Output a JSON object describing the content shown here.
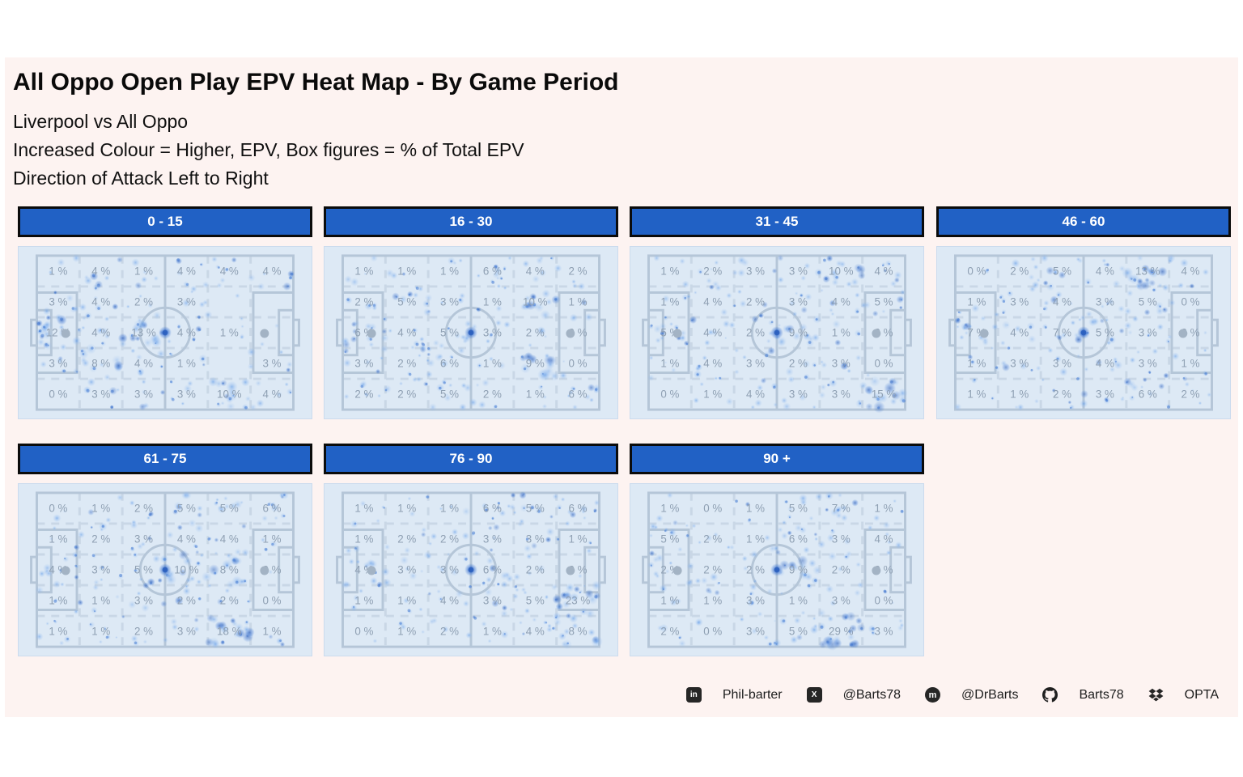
{
  "header": {
    "title": "All Oppo  Open Play EPV Heat Map - By Game Period",
    "subtitle1": "Liverpool vs All Oppo",
    "subtitle2": "Increased Colour = Higher, EPV, Box figures = % of Total EPV",
    "subtitle3": "Direction of Attack Left to Right"
  },
  "chart_data": {
    "type": "heatmap",
    "title": "All Oppo  Open Play EPV Heat Map - By Game Period",
    "subtitle": [
      "Liverpool vs All Oppo",
      "Increased Colour = Higher, EPV, Box figures = % of Total EPV",
      "Direction of Attack Left to Right"
    ],
    "unit": "% of Total EPV",
    "direction_of_attack": "Left to Right",
    "grid": {
      "rows": 5,
      "cols": 6
    },
    "panels": [
      {
        "period": "0 - 15",
        "values_pct": [
          [
            1,
            4,
            1,
            4,
            4,
            4
          ],
          [
            3,
            4,
            2,
            3,
            null,
            null
          ],
          [
            12,
            4,
            13,
            4,
            1,
            null
          ],
          [
            3,
            8,
            4,
            1,
            null,
            3
          ],
          [
            0,
            3,
            3,
            3,
            10,
            4
          ]
        ]
      },
      {
        "period": "16 - 30",
        "values_pct": [
          [
            1,
            1,
            1,
            6,
            4,
            2
          ],
          [
            2,
            5,
            3,
            1,
            10,
            1
          ],
          [
            6,
            4,
            5,
            3,
            2,
            0
          ],
          [
            3,
            2,
            6,
            1,
            9,
            0
          ],
          [
            2,
            2,
            5,
            2,
            1,
            6
          ]
        ]
      },
      {
        "period": "31 - 45",
        "values_pct": [
          [
            1,
            2,
            3,
            3,
            10,
            4
          ],
          [
            1,
            4,
            2,
            3,
            4,
            5
          ],
          [
            5,
            4,
            2,
            9,
            1,
            0
          ],
          [
            1,
            4,
            3,
            2,
            3,
            0
          ],
          [
            0,
            1,
            4,
            3,
            3,
            15
          ]
        ]
      },
      {
        "period": "46 - 60",
        "values_pct": [
          [
            0,
            2,
            5,
            4,
            13,
            4
          ],
          [
            1,
            3,
            4,
            3,
            5,
            0
          ],
          [
            7,
            4,
            7,
            5,
            3,
            0
          ],
          [
            1,
            3,
            3,
            4,
            3,
            1
          ],
          [
            1,
            1,
            2,
            3,
            6,
            2
          ]
        ]
      },
      {
        "period": "61 - 75",
        "values_pct": [
          [
            0,
            1,
            2,
            5,
            5,
            6
          ],
          [
            1,
            2,
            3,
            4,
            4,
            1
          ],
          [
            4,
            3,
            5,
            10,
            8,
            0
          ],
          [
            1,
            1,
            3,
            2,
            2,
            0
          ],
          [
            1,
            1,
            2,
            3,
            18,
            1
          ]
        ]
      },
      {
        "period": "76 - 90",
        "values_pct": [
          [
            1,
            1,
            1,
            6,
            5,
            6
          ],
          [
            1,
            2,
            2,
            3,
            3,
            1
          ],
          [
            4,
            3,
            3,
            6,
            2,
            0
          ],
          [
            1,
            1,
            4,
            3,
            5,
            23
          ],
          [
            0,
            1,
            2,
            1,
            4,
            8
          ]
        ]
      },
      {
        "period": "90 +",
        "values_pct": [
          [
            1,
            0,
            1,
            5,
            7,
            1
          ],
          [
            5,
            2,
            1,
            6,
            3,
            4
          ],
          [
            2,
            2,
            2,
            9,
            2,
            0
          ],
          [
            1,
            1,
            3,
            1,
            3,
            0
          ],
          [
            2,
            0,
            3,
            5,
            29,
            3
          ]
        ]
      }
    ]
  },
  "footer": {
    "items": [
      {
        "icon": "linkedin-icon",
        "label": "Phil-barter"
      },
      {
        "icon": "x-icon",
        "label": "@Barts78"
      },
      {
        "icon": "mastodon-icon",
        "label": "@DrBarts"
      },
      {
        "icon": "github-icon",
        "label": "Barts78"
      },
      {
        "icon": "dropbox-icon",
        "label": "OPTA"
      }
    ]
  },
  "colors": {
    "period_bar": "#2161c5",
    "panel_bg": "#fdf3f1",
    "pitch_bg": "#dde9f5",
    "pitch_line": "#b5c6d8",
    "grid_dash": "#c9d7e6",
    "value_label": "#8fa0b3",
    "spot_gray": "#a3b3c4",
    "heat_light": "#5e9ae8",
    "heat_dark": "#1d50ae"
  }
}
